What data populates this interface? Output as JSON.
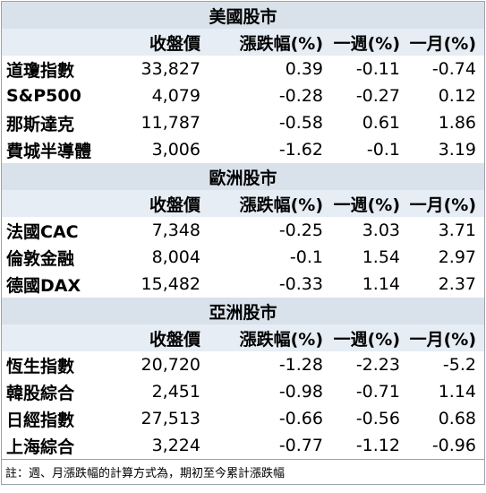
{
  "columns": [
    "收盤價",
    "漲跌幅(%)",
    "一週(%)",
    "一月(%)"
  ],
  "sections": [
    {
      "title": "美國股市",
      "rows": [
        {
          "name": "道瓊指數",
          "close": "33,827",
          "change": "0.39",
          "week": "-0.11",
          "month": "-0.74"
        },
        {
          "name": "S&P500",
          "close": "4,079",
          "change": "-0.28",
          "week": "-0.27",
          "month": "0.12"
        },
        {
          "name": "那斯達克",
          "close": "11,787",
          "change": "-0.58",
          "week": "0.61",
          "month": "1.86"
        },
        {
          "name": "費城半導體",
          "close": "3,006",
          "change": "-1.62",
          "week": "-0.1",
          "month": "3.19"
        }
      ]
    },
    {
      "title": "歐洲股市",
      "rows": [
        {
          "name": "法國CAC",
          "close": "7,348",
          "change": "-0.25",
          "week": "3.03",
          "month": "3.71"
        },
        {
          "name": "倫敦金融",
          "close": "8,004",
          "change": "-0.1",
          "week": "1.54",
          "month": "2.97"
        },
        {
          "name": "德國DAX",
          "close": "15,482",
          "change": "-0.33",
          "week": "1.14",
          "month": "2.37"
        }
      ]
    },
    {
      "title": "亞洲股市",
      "rows": [
        {
          "name": "恆生指數",
          "close": "20,720",
          "change": "-1.28",
          "week": "-2.23",
          "month": "-5.2"
        },
        {
          "name": "韓股綜合",
          "close": "2,451",
          "change": "-0.98",
          "week": "-0.71",
          "month": "1.14"
        },
        {
          "name": "日經指數",
          "close": "27,513",
          "change": "-0.66",
          "week": "-0.56",
          "month": "0.68"
        },
        {
          "name": "上海綜合",
          "close": "3,224",
          "change": "-0.77",
          "week": "-1.12",
          "month": "-0.96"
        }
      ]
    }
  ],
  "note": "註：週、月漲跌幅的計算方式為，期初至今累計漲跌幅",
  "colors": {
    "section_bg": "#d9e1ea",
    "header_bg": "#e6edf4",
    "border": "#9aa3ad"
  }
}
